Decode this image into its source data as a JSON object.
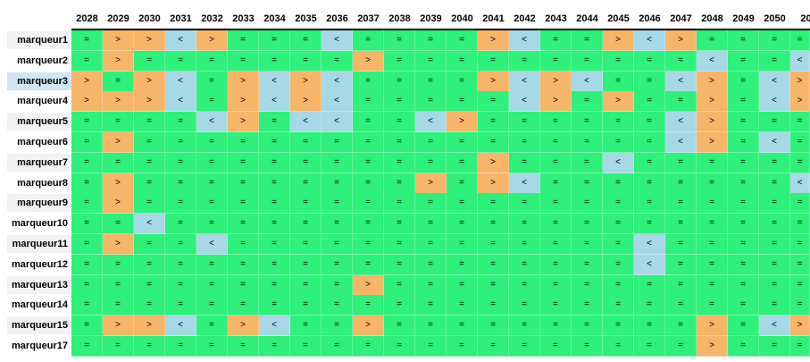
{
  "years": [
    "2028",
    "2029",
    "2030",
    "2031",
    "2032",
    "2033",
    "2034",
    "2035",
    "2036",
    "2037",
    "2038",
    "2039",
    "2040",
    "2041",
    "2042",
    "2043",
    "2044",
    "2045",
    "2046",
    "2047",
    "2048",
    "2049",
    "2050",
    "20"
  ],
  "colors": {
    "eq": "#2ef07a",
    "gt": "#f7b56a",
    "lt": "#a7d8e6"
  },
  "rows": [
    {
      "label": "marqueur1",
      "cells": [
        "=",
        ">",
        ">",
        "<",
        ">",
        "=",
        "=",
        "=",
        "<",
        "=",
        "=",
        "=",
        "=",
        ">",
        "<",
        "=",
        "=",
        ">",
        "<",
        ">",
        "=",
        "=",
        "=",
        "="
      ]
    },
    {
      "label": "marqueur2",
      "cells": [
        "=",
        ">",
        "=",
        "=",
        "=",
        "=",
        "=",
        "=",
        "=",
        ">",
        "=",
        "=",
        "=",
        "=",
        "=",
        "=",
        "=",
        "=",
        "=",
        "=",
        "<",
        "=",
        "=",
        "<"
      ]
    },
    {
      "label": "marqueur3",
      "cells": [
        ">",
        "=",
        ">",
        "<",
        "=",
        ">",
        "<",
        ">",
        "<",
        "=",
        "=",
        "=",
        "=",
        ">",
        "<",
        ">",
        "<",
        "=",
        "=",
        "<",
        ">",
        "=",
        "<",
        ">"
      ]
    },
    {
      "label": "marqueur4",
      "cells": [
        ">",
        ">",
        ">",
        "<",
        "=",
        ">",
        "<",
        ">",
        "<",
        "=",
        "=",
        "=",
        "=",
        "=",
        "<",
        ">",
        "=",
        ">",
        "=",
        "=",
        ">",
        "=",
        "<",
        ">"
      ]
    },
    {
      "label": "marqueur5",
      "cells": [
        "=",
        "=",
        "=",
        "=",
        "<",
        ">",
        "=",
        "<",
        "<",
        "=",
        "=",
        "<",
        ">",
        "=",
        "=",
        "=",
        "=",
        "=",
        "=",
        "<",
        ">",
        "=",
        "=",
        "="
      ]
    },
    {
      "label": "marqueur6",
      "cells": [
        "=",
        ">",
        "=",
        "=",
        "=",
        "=",
        "=",
        "=",
        "=",
        "=",
        "=",
        "=",
        "=",
        "=",
        "=",
        "=",
        "=",
        "=",
        "=",
        "<",
        ">",
        "=",
        "<",
        "="
      ]
    },
    {
      "label": "marqueur7",
      "cells": [
        "=",
        "=",
        "=",
        "=",
        "=",
        "=",
        "=",
        "=",
        "=",
        "=",
        "=",
        "=",
        "=",
        ">",
        "=",
        "=",
        "=",
        "<",
        "=",
        "=",
        "=",
        "=",
        "=",
        "="
      ]
    },
    {
      "label": "marqueur8",
      "cells": [
        "=",
        ">",
        "=",
        "=",
        "=",
        "=",
        "=",
        "=",
        "=",
        "=",
        "=",
        ">",
        "=",
        ">",
        "<",
        "=",
        "=",
        "=",
        "=",
        "=",
        "=",
        "=",
        "=",
        "<"
      ]
    },
    {
      "label": "marqueur9",
      "cells": [
        "=",
        ">",
        "=",
        "=",
        "=",
        "=",
        "=",
        "=",
        "=",
        "=",
        "=",
        "=",
        "=",
        "=",
        "=",
        "=",
        "=",
        "=",
        "=",
        "=",
        "=",
        "=",
        "=",
        "="
      ]
    },
    {
      "label": "marqueur10",
      "cells": [
        "=",
        "=",
        "<",
        "=",
        "=",
        "=",
        "=",
        "=",
        "=",
        "=",
        "=",
        "=",
        "=",
        "=",
        "=",
        "=",
        "=",
        "=",
        "=",
        "=",
        "=",
        "=",
        "=",
        "="
      ]
    },
    {
      "label": "marqueur11",
      "cells": [
        "=",
        ">",
        "=",
        "=",
        "<",
        "=",
        "=",
        "=",
        "=",
        "=",
        "=",
        "=",
        "=",
        "=",
        "=",
        "=",
        "=",
        "=",
        "<",
        "=",
        "=",
        "=",
        "=",
        "="
      ]
    },
    {
      "label": "marqueur12",
      "cells": [
        "=",
        "=",
        "=",
        "=",
        "=",
        "=",
        "=",
        "=",
        "=",
        "=",
        "=",
        "=",
        "=",
        "=",
        "=",
        "=",
        "=",
        "=",
        "<",
        "=",
        "=",
        "=",
        "=",
        "="
      ]
    },
    {
      "label": "marqueur13",
      "cells": [
        "=",
        "=",
        "=",
        "=",
        "=",
        "=",
        "=",
        "=",
        "=",
        ">",
        "=",
        "=",
        "=",
        "=",
        "=",
        "=",
        "=",
        "=",
        "=",
        "=",
        "=",
        "=",
        "=",
        "="
      ]
    },
    {
      "label": "marqueur14",
      "cells": [
        "=",
        "=",
        "=",
        "=",
        "=",
        "=",
        "=",
        "=",
        "=",
        "=",
        "=",
        "=",
        "=",
        "=",
        "=",
        "=",
        "=",
        "=",
        "=",
        "=",
        "=",
        "=",
        "=",
        "="
      ]
    },
    {
      "label": "marqueur15",
      "cells": [
        "=",
        ">",
        ">",
        "<",
        "=",
        ">",
        "<",
        "=",
        "=",
        ">",
        "=",
        "=",
        "=",
        "=",
        "=",
        "=",
        "=",
        "=",
        "=",
        "=",
        ">",
        "=",
        "<",
        ">"
      ]
    },
    {
      "label": "marqueur17",
      "cells": [
        "=",
        "=",
        "=",
        "=",
        "=",
        "=",
        "=",
        "=",
        "=",
        "=",
        "=",
        "=",
        "=",
        "=",
        "=",
        "=",
        "=",
        "=",
        "=",
        "=",
        ">",
        "=",
        "=",
        "="
      ]
    }
  ]
}
